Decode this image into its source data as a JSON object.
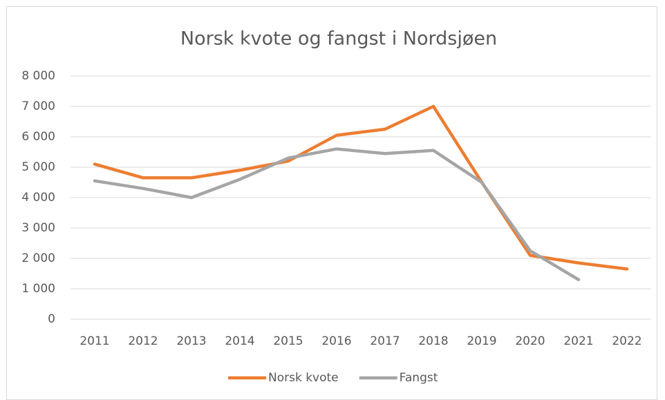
{
  "chart_data": {
    "type": "line",
    "title": "Norsk kvote og fangst i Nordsjøen",
    "categories": [
      "2011",
      "2012",
      "2013",
      "2014",
      "2015",
      "2016",
      "2017",
      "2018",
      "2019",
      "2020",
      "2021",
      "2022"
    ],
    "series": [
      {
        "name": "Norsk kvote",
        "color": "#ed7d31",
        "values": [
          5100,
          4650,
          4650,
          4900,
          5200,
          6050,
          6250,
          7000,
          4500,
          2100,
          1850,
          1650
        ]
      },
      {
        "name": "Fangst",
        "color": "#a5a5a5",
        "values": [
          4550,
          4300,
          4000,
          4600,
          5300,
          5600,
          5450,
          5550,
          4500,
          2250,
          1300,
          null
        ]
      }
    ],
    "ylim": [
      0,
      8000
    ],
    "yticks": [
      0,
      {
        "value": 1000,
        "label": "1 000"
      },
      {
        "value": 2000,
        "label": "2 000"
      },
      {
        "value": 3000,
        "label": "3 000"
      },
      {
        "value": 4000,
        "label": "4 000"
      },
      {
        "value": 5000,
        "label": "5 000"
      },
      {
        "value": 6000,
        "label": "6 000"
      },
      {
        "value": 7000,
        "label": "7 000"
      },
      {
        "value": 8000,
        "label": "8 000"
      }
    ],
    "grid": true,
    "legend": "bottom"
  }
}
